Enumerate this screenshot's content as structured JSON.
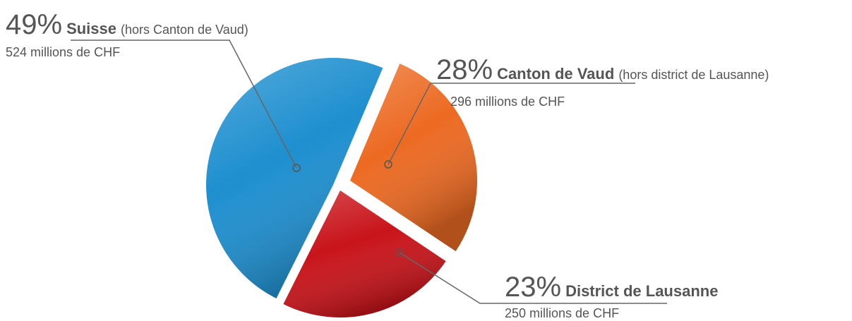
{
  "chart_data": {
    "type": "pie",
    "categories": [
      "Suisse",
      "Canton de Vaud",
      "District de Lausanne"
    ],
    "values": [
      49,
      28,
      23
    ],
    "value_labels": [
      "49%",
      "28%",
      "23%"
    ],
    "notes": [
      "(hors Canton de Vaud)",
      "(hors district de Lausanne)",
      null
    ],
    "details": [
      "524 millions de CHF",
      "296 millions de CHF",
      "250 millions de CHF"
    ],
    "colors": [
      "#1e8fcf",
      "#ec6a22",
      "#c8141a"
    ]
  }
}
